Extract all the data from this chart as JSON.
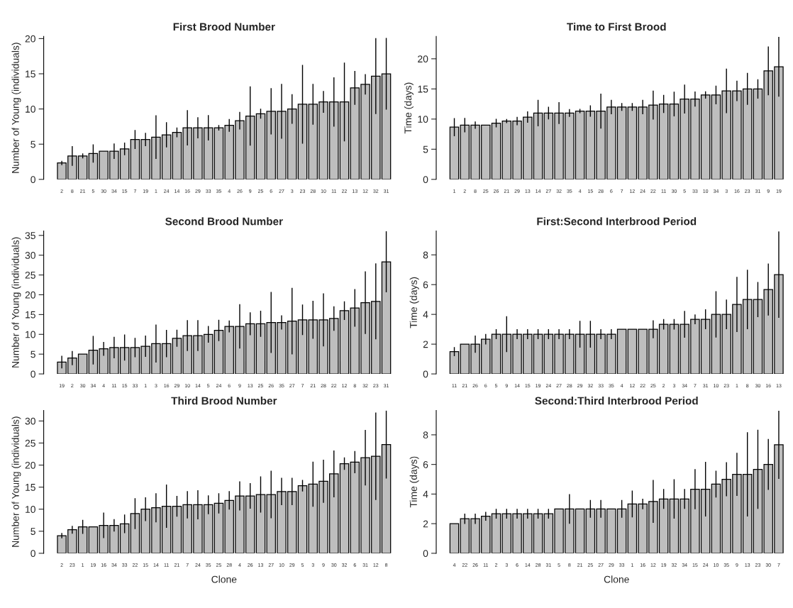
{
  "chart_data": [
    {
      "type": "bar",
      "title": "First Brood Number",
      "ylabel": "Number of Young (individuals)",
      "color": "#bebebe",
      "categories": [
        "2",
        "8",
        "21",
        "5",
        "30",
        "34",
        "15",
        "7",
        "19",
        "1",
        "24",
        "14",
        "16",
        "29",
        "33",
        "35",
        "4",
        "26",
        "9",
        "25",
        "6",
        "27",
        "3",
        "23",
        "28",
        "10",
        "11",
        "22",
        "13",
        "12",
        "32",
        "31"
      ],
      "values": [
        2.33,
        3.33,
        3.33,
        3.67,
        4,
        4,
        4.33,
        5.67,
        5.67,
        6,
        6.33,
        6.67,
        7.33,
        7.33,
        7.33,
        7.33,
        7.67,
        8.33,
        9,
        9.33,
        9.67,
        9.67,
        10,
        10.67,
        10.67,
        11,
        11,
        11,
        13,
        13.5,
        14.67,
        15
      ],
      "errors": [
        0.3,
        1.4,
        0.35,
        1.3,
        0,
        1.1,
        0.9,
        1.35,
        0.95,
        3.1,
        1.8,
        0.7,
        2.5,
        1.5,
        1.8,
        0.4,
        0.9,
        1.25,
        4.2,
        0.7,
        3.3,
        3.9,
        2.1,
        5.6,
        2.9,
        1.55,
        3.5,
        5.6,
        2.4,
        1.45,
        5.4,
        5.1
      ],
      "ylim": [
        0,
        20.3
      ],
      "yticks": [
        0,
        5,
        10,
        15,
        20
      ]
    },
    {
      "type": "bar",
      "title": "Time to First Brood",
      "ylabel": "Time (days)",
      "color": "#bebebe",
      "categories": [
        "1",
        "2",
        "8",
        "25",
        "26",
        "21",
        "29",
        "13",
        "14",
        "27",
        "32",
        "35",
        "4",
        "15",
        "28",
        "6",
        "7",
        "12",
        "24",
        "22",
        "11",
        "30",
        "5",
        "33",
        "10",
        "34",
        "3",
        "16",
        "23",
        "31",
        "9",
        "19"
      ],
      "values": [
        8.67,
        9,
        9,
        9,
        9.33,
        9.67,
        9.67,
        10.33,
        11,
        11,
        11,
        11,
        11.33,
        11.33,
        11.33,
        12,
        12,
        12,
        12,
        12.33,
        12.5,
        12.5,
        13.33,
        13.33,
        14,
        14,
        14.67,
        14.67,
        15,
        15,
        18,
        18.67
      ],
      "errors": [
        1.5,
        1.2,
        0.6,
        0,
        0.7,
        0.35,
        0.7,
        0.95,
        2.2,
        1.05,
        1.8,
        0.65,
        0.35,
        0.95,
        2.9,
        1.2,
        0.65,
        0.65,
        1.2,
        2.4,
        1.5,
        2.05,
        2.4,
        1.25,
        0.6,
        1.55,
        3.7,
        1.7,
        2.65,
        1.6,
        4.05,
        4.95
      ],
      "ylim": [
        0,
        23.7
      ],
      "yticks": [
        0,
        5,
        10,
        15,
        20
      ]
    },
    {
      "type": "bar",
      "title": "Second Brood Number",
      "ylabel": "Number of Young (individuals)",
      "color": "#bebebe",
      "categories": [
        "19",
        "2",
        "30",
        "34",
        "4",
        "11",
        "15",
        "33",
        "1",
        "3",
        "16",
        "29",
        "10",
        "14",
        "5",
        "24",
        "6",
        "9",
        "13",
        "25",
        "26",
        "35",
        "27",
        "7",
        "21",
        "28",
        "22",
        "12",
        "8",
        "32",
        "23",
        "31"
      ],
      "values": [
        3,
        4,
        5,
        6,
        6.33,
        6.67,
        6.67,
        6.67,
        7,
        7.67,
        7.67,
        9,
        9.67,
        9.67,
        10,
        11,
        12,
        12,
        12.67,
        12.67,
        13,
        13,
        13.33,
        13.67,
        13.67,
        13.67,
        14,
        16,
        16.67,
        18,
        18.33,
        28.33
      ],
      "errors": [
        1.6,
        1.8,
        0,
        3.6,
        1.75,
        2.7,
        3.3,
        2.45,
        2.7,
        4.8,
        3.45,
        2.15,
        3.9,
        3.9,
        2.1,
        2.7,
        1.5,
        5.6,
        2.9,
        3.3,
        7.7,
        1.8,
        8.4,
        3.85,
        4.8,
        6.7,
        3.1,
        2.35,
        4.75,
        7.9,
        9.6,
        7.7
      ],
      "ylim": [
        0,
        36.1
      ],
      "yticks": [
        0,
        5,
        10,
        15,
        20,
        25,
        30,
        35
      ]
    },
    {
      "type": "bar",
      "title": "First:Second Interbrood Period",
      "ylabel": "Time (days)",
      "color": "#bebebe",
      "categories": [
        "11",
        "21",
        "26",
        "6",
        "5",
        "9",
        "14",
        "15",
        "19",
        "24",
        "27",
        "28",
        "29",
        "32",
        "33",
        "35",
        "4",
        "12",
        "22",
        "25",
        "2",
        "3",
        "34",
        "7",
        "31",
        "10",
        "23",
        "1",
        "8",
        "30",
        "16",
        "13"
      ],
      "values": [
        1.5,
        2,
        2,
        2.33,
        2.67,
        2.67,
        2.67,
        2.67,
        2.67,
        2.67,
        2.67,
        2.67,
        2.67,
        2.67,
        2.67,
        2.67,
        3,
        3,
        3,
        3,
        3.33,
        3.33,
        3.33,
        3.67,
        3.67,
        4,
        4,
        4.67,
        5,
        5,
        5.67,
        6.67
      ],
      "errors": [
        0.3,
        0,
        0.58,
        0.35,
        0.33,
        1.2,
        0.33,
        0.33,
        0.33,
        0.33,
        0.33,
        0.33,
        0.9,
        0.9,
        0.33,
        0.33,
        0,
        0,
        0,
        0.6,
        0.35,
        0.35,
        0.9,
        0.33,
        0.67,
        1.55,
        1.0,
        1.85,
        2,
        1.18,
        1.75,
        2.9
      ],
      "ylim": [
        0,
        9.6
      ],
      "yticks": [
        0,
        2,
        4,
        6,
        8
      ]
    },
    {
      "type": "bar",
      "title": "Third Brood Number",
      "ylabel": "Number of Young (individuals)",
      "xlabel": "Clone",
      "color": "#bebebe",
      "categories": [
        "2",
        "23",
        "1",
        "19",
        "16",
        "34",
        "33",
        "22",
        "15",
        "14",
        "11",
        "21",
        "7",
        "24",
        "35",
        "25",
        "28",
        "4",
        "26",
        "13",
        "27",
        "10",
        "29",
        "5",
        "3",
        "9",
        "30",
        "32",
        "6",
        "31",
        "12",
        "8"
      ],
      "values": [
        4,
        5.33,
        6,
        6,
        6.33,
        6.33,
        6.67,
        9,
        10,
        10.33,
        10.67,
        10.67,
        11,
        11,
        11,
        11.33,
        12,
        13,
        13,
        13.33,
        13.33,
        14,
        14,
        15.33,
        15.67,
        16.33,
        18,
        20.33,
        20.67,
        21.67,
        22,
        24.67
      ],
      "errors": [
        0.6,
        0.9,
        1.6,
        0,
        2.9,
        1.4,
        2.1,
        3.5,
        2.7,
        3.3,
        4.9,
        2.35,
        3.1,
        3.3,
        2.15,
        2.3,
        2.1,
        3.3,
        2.9,
        4.1,
        5.4,
        3.1,
        3.1,
        1.3,
        5.1,
        4.9,
        5.3,
        1.4,
        2.5,
        6.3,
        9.9,
        7.7
      ],
      "ylim": [
        0,
        32.4
      ],
      "yticks": [
        0,
        5,
        10,
        15,
        20,
        25,
        30
      ]
    },
    {
      "type": "bar",
      "title": "Second:Third Interbrood Period",
      "ylabel": "Time (days)",
      "xlabel": "Clone",
      "color": "#bebebe",
      "categories": [
        "4",
        "22",
        "26",
        "11",
        "2",
        "3",
        "6",
        "14",
        "28",
        "31",
        "5",
        "8",
        "21",
        "25",
        "27",
        "29",
        "33",
        "1",
        "16",
        "12",
        "19",
        "32",
        "34",
        "15",
        "24",
        "10",
        "35",
        "9",
        "13",
        "23",
        "30",
        "7"
      ],
      "values": [
        2,
        2.33,
        2.33,
        2.5,
        2.67,
        2.67,
        2.67,
        2.67,
        2.67,
        2.67,
        3,
        3,
        3,
        3,
        3,
        3,
        3,
        3.33,
        3.33,
        3.5,
        3.67,
        3.67,
        3.67,
        4.33,
        4.33,
        4.67,
        5,
        5.33,
        5.33,
        5.67,
        6,
        7.33
      ],
      "errors": [
        0,
        0.35,
        0.35,
        0.3,
        0.33,
        0.33,
        0.33,
        0.33,
        0.33,
        0.33,
        0,
        1,
        0,
        0.6,
        0.6,
        0,
        0.6,
        0.9,
        0.35,
        1.45,
        0.67,
        1.33,
        0.67,
        1.35,
        1.85,
        0.9,
        1.15,
        1.45,
        2.85,
        2.67,
        1.72,
        2.3
      ],
      "ylim": [
        0,
        9.65
      ],
      "yticks": [
        0,
        2,
        4,
        6,
        8
      ]
    }
  ]
}
